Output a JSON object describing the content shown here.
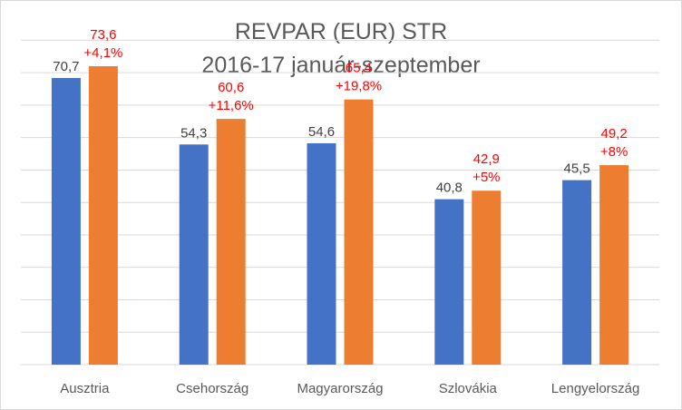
{
  "chart_data": {
    "type": "bar",
    "title": "REVPAR (EUR) STR",
    "subtitle": "2016-17 január-szeptember",
    "categories": [
      "Ausztria",
      "Csehország",
      "Magyarország",
      "Szlovákia",
      "Lengyelország"
    ],
    "series": [
      {
        "values": [
          70.7,
          54.3,
          54.6,
          40.8,
          45.5
        ],
        "labels": [
          "70,7",
          "54,3",
          "54,6",
          "40,8",
          "45,5"
        ],
        "color": "#4472c4"
      },
      {
        "values": [
          73.6,
          60.6,
          65.4,
          42.9,
          49.2
        ],
        "labels": [
          "73,6",
          "60,6",
          "65,4",
          "42,9",
          "49,2"
        ],
        "changes": [
          "+4,1%",
          "+11,6%",
          "+19,8%",
          "+5%",
          "+8%"
        ],
        "color": "#ed7d31"
      }
    ],
    "ylim": [
      0,
      80
    ],
    "grid": true,
    "value_label_color": "#404040",
    "change_label_color": "#ff0000"
  }
}
